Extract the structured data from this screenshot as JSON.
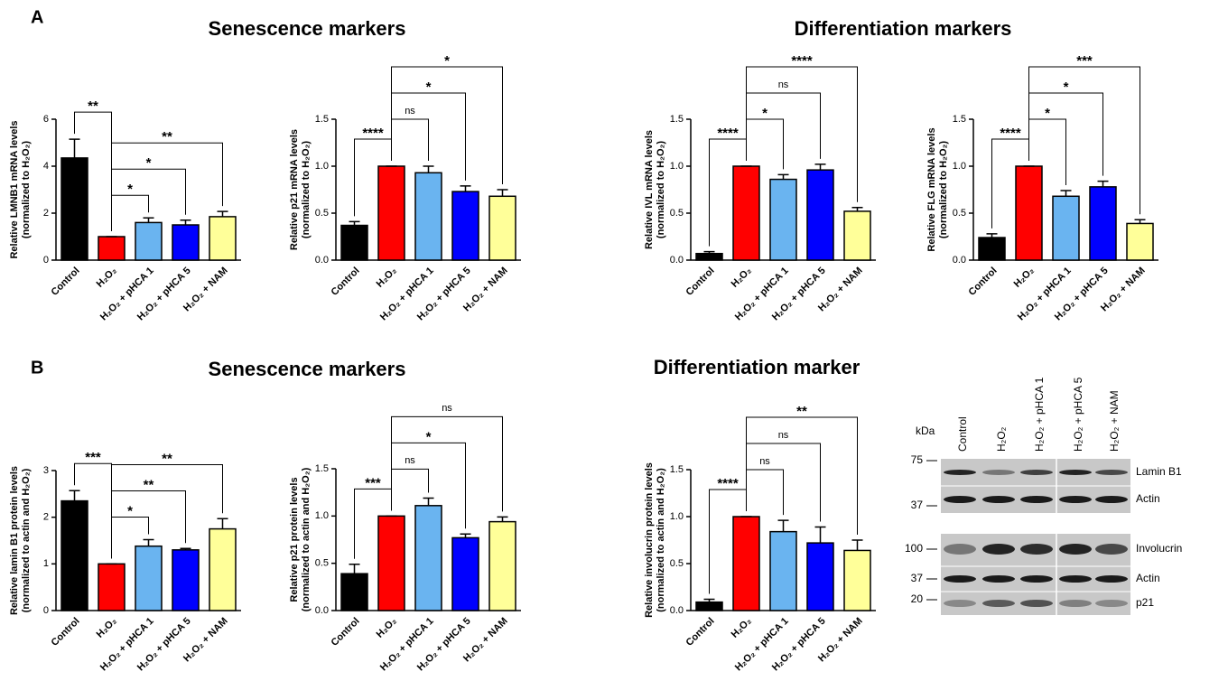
{
  "panel_labels": [
    "A",
    "B"
  ],
  "section_titles": [
    "Senescence markers",
    "Differentiation markers",
    "Senescence markers",
    "Differentiation marker"
  ],
  "chart_data": [
    {
      "type": "bar",
      "ylabel": [
        "Relative LMNB1 mRNA levels",
        "(normalized to H₂O₂)"
      ],
      "categories": [
        "Control",
        "H₂O₂",
        "H₂O₂ + pHCA 1",
        "H₂O₂ + pHCA 5",
        "H₂O₂ + NAM"
      ],
      "values": [
        4.35,
        1.0,
        1.6,
        1.5,
        1.85
      ],
      "errors": [
        0.8,
        0,
        0.2,
        0.2,
        0.22
      ],
      "colors": [
        "#000000",
        "#ff0000",
        "#6ab4f0",
        "#0000ff",
        "#ffff99"
      ],
      "ylim": [
        0,
        6
      ],
      "yticks": [
        0,
        2,
        4,
        6
      ],
      "annotations": [
        "**",
        "*",
        "*",
        "**"
      ]
    },
    {
      "type": "bar",
      "ylabel": [
        "Relative p21 mRNA levels",
        "(normalized to H₂O₂)"
      ],
      "categories": [
        "Control",
        "H₂O₂",
        "H₂O₂ + pHCA 1",
        "H₂O₂ + pHCA 5",
        "H₂O₂ + NAM"
      ],
      "values": [
        0.37,
        1.0,
        0.93,
        0.73,
        0.68
      ],
      "errors": [
        0.04,
        0,
        0.07,
        0.06,
        0.07
      ],
      "colors": [
        "#000000",
        "#ff0000",
        "#6ab4f0",
        "#0000ff",
        "#ffff99"
      ],
      "ylim": [
        0,
        1.5
      ],
      "yticks": [
        {
          "value": 0,
          "label": "0.0"
        },
        0.5,
        {
          "value": 1,
          "label": "1.0"
        },
        1.5
      ],
      "annotations": [
        "****",
        "ns",
        "*",
        "*"
      ]
    },
    {
      "type": "bar",
      "ylabel": [
        "Relative IVL mRNA levels",
        "(normalized to H₂O₂)"
      ],
      "categories": [
        "Control",
        "H₂O₂",
        "H₂O₂ + pHCA 1",
        "H₂O₂ + pHCA 5",
        "H₂O₂ + NAM"
      ],
      "values": [
        0.07,
        1.0,
        0.86,
        0.96,
        0.52
      ],
      "errors": [
        0.02,
        0,
        0.05,
        0.06,
        0.04
      ],
      "colors": [
        "#000000",
        "#ff0000",
        "#6ab4f0",
        "#0000ff",
        "#ffff99"
      ],
      "ylim": [
        0,
        1.5
      ],
      "yticks": [
        {
          "value": 0,
          "label": "0.0"
        },
        0.5,
        {
          "value": 1,
          "label": "1.0"
        },
        1.5
      ],
      "annotations": [
        "****",
        "*",
        "ns",
        "****"
      ]
    },
    {
      "type": "bar",
      "ylabel": [
        "Relative FLG mRNA levels",
        "(normalized to H₂O₂)"
      ],
      "categories": [
        "Control",
        "H₂O₂",
        "H₂O₂ + pHCA 1",
        "H₂O₂ + pHCA 5",
        "H₂O₂ + NAM"
      ],
      "values": [
        0.24,
        1.0,
        0.68,
        0.78,
        0.39
      ],
      "errors": [
        0.04,
        0,
        0.06,
        0.06,
        0.04
      ],
      "colors": [
        "#000000",
        "#ff0000",
        "#6ab4f0",
        "#0000ff",
        "#ffff99"
      ],
      "ylim": [
        0,
        1.5
      ],
      "yticks": [
        {
          "value": 0,
          "label": "0.0"
        },
        0.5,
        {
          "value": 1,
          "label": "1.0"
        },
        1.5
      ],
      "annotations": [
        "****",
        "*",
        "*",
        "***"
      ]
    },
    {
      "type": "bar",
      "ylabel": [
        "Relative lamin B1 protein  levels",
        "(normalized to actin and H₂O₂)"
      ],
      "categories": [
        "Control",
        "H₂O₂",
        "H₂O₂ + pHCA 1",
        "H₂O₂ + pHCA 5",
        "H₂O₂ + NAM"
      ],
      "values": [
        2.35,
        1.0,
        1.38,
        1.3,
        1.75
      ],
      "errors": [
        0.22,
        0,
        0.14,
        0.03,
        0.22
      ],
      "colors": [
        "#000000",
        "#ff0000",
        "#6ab4f0",
        "#0000ff",
        "#ffff99"
      ],
      "ylim": [
        0,
        3
      ],
      "yticks": [
        0,
        1,
        2,
        3
      ],
      "annotations": [
        "***",
        "*",
        "**",
        "**"
      ]
    },
    {
      "type": "bar",
      "ylabel": [
        "Relative p21 protein  levels",
        "(normalized to actin and H₂O₂)"
      ],
      "categories": [
        "Control",
        "H₂O₂",
        "H₂O₂ + pHCA 1",
        "H₂O₂ + pHCA 5",
        "H₂O₂ + NAM"
      ],
      "values": [
        0.39,
        1.0,
        1.11,
        0.77,
        0.94
      ],
      "errors": [
        0.1,
        0,
        0.08,
        0.04,
        0.05
      ],
      "colors": [
        "#000000",
        "#ff0000",
        "#6ab4f0",
        "#0000ff",
        "#ffff99"
      ],
      "ylim": [
        0,
        1.5
      ],
      "yticks": [
        {
          "value": 0,
          "label": "0.0"
        },
        0.5,
        {
          "value": 1,
          "label": "1.0"
        },
        1.5
      ],
      "annotations": [
        "***",
        "ns",
        "*",
        "ns"
      ]
    },
    {
      "type": "bar",
      "ylabel": [
        "Relative involucrin protein levels",
        "(normalized to actin and H₂O₂)"
      ],
      "categories": [
        "Control",
        "H₂O₂",
        "H₂O₂ + pHCA 1",
        "H₂O₂ + pHCA 5",
        "H₂O₂ + NAM"
      ],
      "values": [
        0.09,
        1.0,
        0.84,
        0.72,
        0.64
      ],
      "errors": [
        0.03,
        0,
        0.12,
        0.17,
        0.11
      ],
      "colors": [
        "#000000",
        "#ff0000",
        "#6ab4f0",
        "#0000ff",
        "#ffff99"
      ],
      "ylim": [
        0,
        1.5
      ],
      "yticks": [
        {
          "value": 0,
          "label": "0.0"
        },
        0.5,
        {
          "value": 1,
          "label": "1.0"
        },
        1.5
      ],
      "annotations": [
        "****",
        "ns",
        "ns",
        "**"
      ]
    }
  ],
  "blot": {
    "kda": "kDa",
    "lanes": [
      "Control",
      "H₂O₂",
      "H₂O₂ + pHCA 1",
      "H₂O₂ + pHCA 5",
      "H₂O₂ + NAM"
    ],
    "markers": [
      75,
      37,
      100,
      37,
      20
    ],
    "rows": [
      "Lamin B1",
      "Actin",
      "Involucrin",
      "Actin",
      "p21"
    ]
  }
}
